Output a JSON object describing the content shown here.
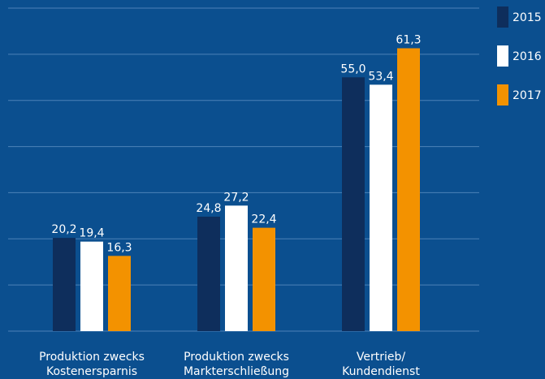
{
  "chart_data": {
    "type": "bar",
    "categories": [
      [
        "Produktion zwecks",
        "Kostenersparnis"
      ],
      [
        "Produktion zwecks",
        "Markterschließung"
      ],
      [
        "Vertrieb/",
        "Kundendienst"
      ]
    ],
    "series": [
      {
        "name": "2015",
        "color": "#0e2e5c",
        "values": [
          20.2,
          24.8,
          55.0
        ],
        "value_labels": [
          "20,2",
          "24,8",
          "55,0"
        ]
      },
      {
        "name": "2016",
        "color": "#ffffff",
        "values": [
          19.4,
          27.2,
          53.4
        ],
        "value_labels": [
          "19,4",
          "27,2",
          "53,4"
        ]
      },
      {
        "name": "2017",
        "color": "#f39200",
        "values": [
          16.3,
          22.4,
          61.3
        ],
        "value_labels": [
          "16,3",
          "22,4",
          "61,3"
        ]
      }
    ],
    "ylim": [
      0,
      70
    ],
    "yticks": [
      0,
      10,
      20,
      30,
      40,
      50,
      60,
      70
    ],
    "grid": true,
    "legend": "right"
  }
}
